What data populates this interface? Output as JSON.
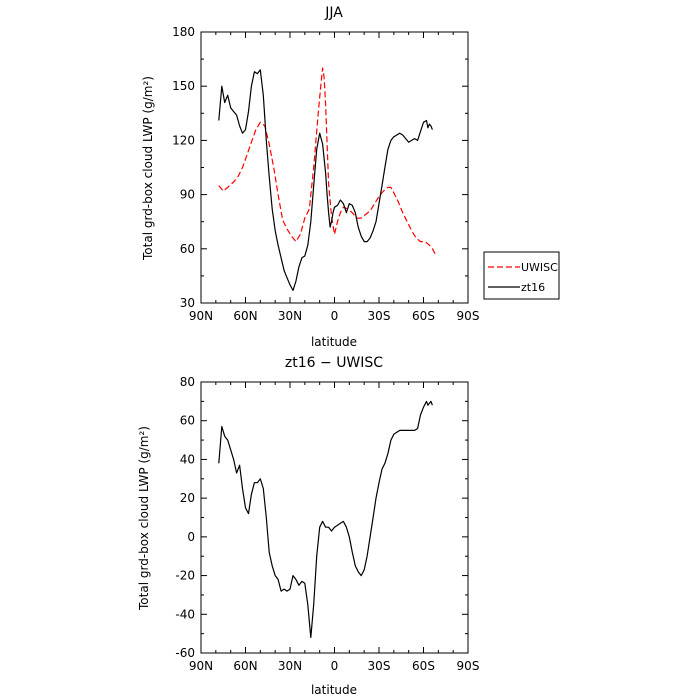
{
  "chart_data": [
    {
      "type": "line",
      "title": "JJA",
      "xlabel": "latitude",
      "ylabel": "Total grd-box cloud LWP (g/m²)",
      "xlim": [
        90,
        -90
      ],
      "ylim": [
        30,
        180
      ],
      "x_ticks": [
        90,
        60,
        30,
        0,
        -30,
        -60,
        -90
      ],
      "x_tick_labels": [
        "90N",
        "60N",
        "30N",
        "0",
        "30S",
        "60S",
        "90S"
      ],
      "y_ticks": [
        30,
        60,
        90,
        120,
        150,
        180
      ],
      "grid": false,
      "legend": {
        "placement": "right-outside",
        "entries": [
          {
            "name": "UWISC",
            "color": "#ff0000",
            "dash": "dashed"
          },
          {
            "name": "zt16",
            "color": "#000000",
            "dash": "solid"
          }
        ]
      },
      "series": [
        {
          "name": "UWISC",
          "color": "#ff0000",
          "dash": "dashed",
          "x": [
            78,
            75,
            72,
            68,
            65,
            62,
            59,
            56,
            53,
            50,
            47,
            44,
            41,
            38,
            35,
            32,
            29,
            26,
            23,
            20,
            17,
            14,
            11,
            9,
            8,
            7,
            6,
            5,
            4,
            2,
            0,
            -2,
            -4,
            -6,
            -9,
            -12,
            -15,
            -18,
            -21,
            -24,
            -27,
            -30,
            -33,
            -36,
            -38,
            -40,
            -43,
            -46,
            -49,
            -52,
            -55,
            -58,
            -61,
            -64,
            -66,
            -68
          ],
          "y": [
            95,
            92,
            94,
            97,
            100,
            105,
            112,
            119,
            126,
            130,
            128,
            118,
            105,
            90,
            76,
            71,
            67,
            64,
            68,
            77,
            82,
            105,
            135,
            152,
            160,
            155,
            140,
            118,
            96,
            78,
            68,
            75,
            80,
            83,
            82,
            80,
            77,
            77,
            79,
            81,
            85,
            89,
            92,
            94,
            94,
            91,
            86,
            80,
            75,
            70,
            66,
            64,
            64,
            62,
            60,
            57
          ]
        },
        {
          "name": "zt16",
          "color": "#000000",
          "dash": "solid",
          "x": [
            78,
            76,
            74,
            72,
            70,
            68,
            66,
            64,
            62,
            60,
            58,
            56,
            54,
            52,
            50,
            48,
            46,
            44,
            42,
            40,
            38,
            36,
            34,
            32,
            30,
            28,
            26,
            24,
            22,
            20,
            18,
            16,
            14,
            12,
            10,
            8,
            6,
            5,
            4,
            3,
            2,
            1,
            0,
            -2,
            -4,
            -6,
            -8,
            -10,
            -12,
            -14,
            -16,
            -18,
            -20,
            -22,
            -24,
            -26,
            -28,
            -30,
            -32,
            -34,
            -36,
            -38,
            -40,
            -42,
            -44,
            -46,
            -48,
            -50,
            -52,
            -54,
            -56,
            -58,
            -60,
            -62,
            -63,
            -64,
            -65,
            -66
          ],
          "y": [
            131,
            150,
            141,
            145,
            138,
            136,
            134,
            128,
            124,
            126,
            136,
            150,
            158,
            157,
            159,
            145,
            120,
            100,
            82,
            70,
            62,
            55,
            48,
            44,
            40,
            37,
            42,
            50,
            55,
            56,
            62,
            75,
            95,
            115,
            124,
            118,
            102,
            90,
            80,
            72,
            75,
            80,
            83,
            84,
            87,
            85,
            80,
            85,
            84,
            80,
            72,
            67,
            64,
            64,
            66,
            70,
            75,
            85,
            95,
            105,
            115,
            120,
            122,
            123,
            124,
            123,
            121,
            119,
            120,
            121,
            120,
            125,
            130,
            131,
            127,
            129,
            128,
            126
          ]
        }
      ]
    },
    {
      "type": "line",
      "title": "zt16 − UWISC",
      "xlabel": "latitude",
      "ylabel": "Total grd-box cloud LWP (g/m²)",
      "xlim": [
        90,
        -90
      ],
      "ylim": [
        -60,
        80
      ],
      "x_ticks": [
        90,
        60,
        30,
        0,
        -30,
        -60,
        -90
      ],
      "x_tick_labels": [
        "90N",
        "60N",
        "30N",
        "0",
        "30S",
        "60S",
        "90S"
      ],
      "y_ticks": [
        -60,
        -40,
        -20,
        0,
        20,
        40,
        60,
        80
      ],
      "grid": false,
      "series": [
        {
          "name": "",
          "color": "#000000",
          "dash": "solid",
          "x": [
            78,
            76,
            74,
            72,
            70,
            68,
            66,
            64,
            62,
            60,
            58,
            56,
            54,
            52,
            50,
            48,
            46,
            44,
            42,
            40,
            38,
            36,
            34,
            32,
            30,
            28,
            26,
            24,
            22,
            20,
            18,
            16,
            14,
            12,
            10,
            8,
            6,
            4,
            2,
            0,
            -2,
            -4,
            -6,
            -8,
            -10,
            -12,
            -14,
            -16,
            -18,
            -20,
            -22,
            -24,
            -26,
            -28,
            -30,
            -32,
            -34,
            -36,
            -38,
            -40,
            -42,
            -44,
            -46,
            -48,
            -50,
            -52,
            -54,
            -56,
            -58,
            -60,
            -62,
            -63,
            -64,
            -65,
            -66
          ],
          "y": [
            38,
            57,
            52,
            50,
            45,
            40,
            33,
            37,
            25,
            15,
            12,
            22,
            28,
            28,
            30,
            25,
            10,
            -8,
            -15,
            -20,
            -22,
            -28,
            -27,
            -28,
            -27,
            -20,
            -22,
            -25,
            -23,
            -24,
            -35,
            -52,
            -35,
            -10,
            5,
            8,
            5,
            5,
            3,
            5,
            6,
            7,
            8,
            5,
            0,
            -8,
            -15,
            -18,
            -20,
            -17,
            -10,
            0,
            10,
            20,
            28,
            35,
            38,
            43,
            50,
            53,
            54,
            55,
            55,
            55,
            55,
            55,
            55,
            56,
            63,
            67,
            70,
            68,
            69,
            70,
            68
          ]
        }
      ]
    }
  ]
}
